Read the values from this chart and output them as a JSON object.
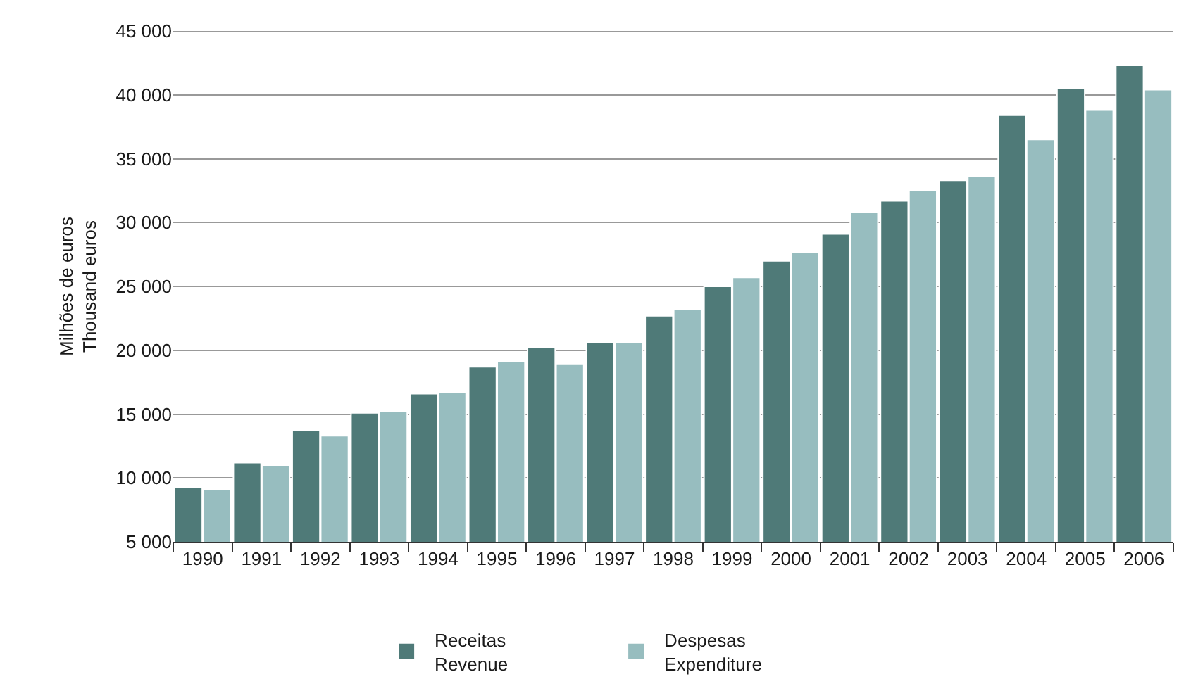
{
  "chart_data": {
    "type": "bar",
    "categories": [
      "1990",
      "1991",
      "1992",
      "1993",
      "1994",
      "1995",
      "1996",
      "1997",
      "1998",
      "1999",
      "2000",
      "2001",
      "2002",
      "2003",
      "2004",
      "2005",
      "2006"
    ],
    "series": [
      {
        "name": "Receitas\nRevenue",
        "color": "#4f7a78",
        "values": [
          9300,
          11200,
          13700,
          15100,
          16600,
          18700,
          20200,
          20600,
          22700,
          25000,
          27000,
          29100,
          31700,
          33300,
          38400,
          40500,
          42300
        ]
      },
      {
        "name": "Despesas\nExpenditure",
        "color": "#97bdbf",
        "values": [
          9100,
          11000,
          13300,
          15200,
          16700,
          19100,
          18900,
          20600,
          23200,
          25700,
          27700,
          30800,
          32500,
          33600,
          36500,
          38800,
          40400
        ]
      }
    ],
    "ylabel": "Milhões de euros\nThousand euros",
    "ylim": [
      5000,
      45000
    ],
    "yticks": [
      {
        "value": 5000,
        "label": "5 000"
      },
      {
        "value": 10000,
        "label": "10 000"
      },
      {
        "value": 15000,
        "label": "15 000"
      },
      {
        "value": 20000,
        "label": "20 000"
      },
      {
        "value": 25000,
        "label": "25 000"
      },
      {
        "value": 30000,
        "label": "30 000"
      },
      {
        "value": 35000,
        "label": "35 000"
      },
      {
        "value": 40000,
        "label": "40 000"
      },
      {
        "value": 45000,
        "label": "45 000"
      }
    ],
    "grid": "y",
    "legend": "bottom"
  }
}
